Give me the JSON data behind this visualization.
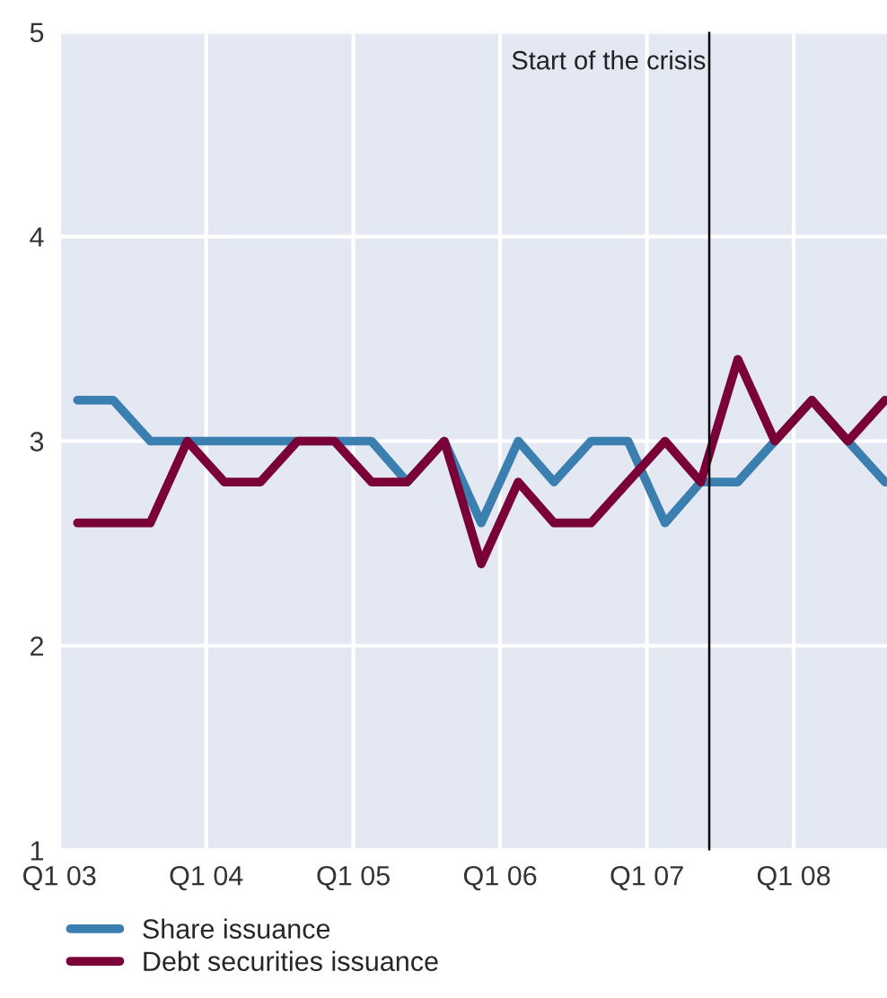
{
  "chart_data": {
    "type": "line",
    "x": [
      "2003-02-15",
      "2003-05-15",
      "2003-08-15",
      "2003-11-15",
      "2004-02-15",
      "2004-05-15",
      "2004-08-15",
      "2004-11-15",
      "2005-02-15",
      "2005-05-15",
      "2005-08-15",
      "2005-11-15",
      "2006-02-15",
      "2006-05-15",
      "2006-08-15",
      "2006-11-15",
      "2007-02-15",
      "2007-05-15",
      "2007-08-15",
      "2007-11-15",
      "2008-02-15",
      "2008-05-15",
      "2008-08-15"
    ],
    "series": [
      {
        "name": "Share issuance",
        "color": "#3a7fb0",
        "values": [
          3.2,
          3.2,
          3.0,
          3.0,
          3.0,
          3.0,
          3.0,
          3.0,
          3.0,
          2.8,
          3.0,
          2.6,
          3.0,
          2.8,
          3.0,
          3.0,
          2.6,
          2.8,
          2.8,
          3.0,
          3.2,
          3.0,
          2.8
        ]
      },
      {
        "name": "Debt securities issuance",
        "color": "#7a0038",
        "values": [
          2.6,
          2.6,
          2.6,
          3.0,
          2.8,
          2.8,
          3.0,
          3.0,
          2.8,
          2.8,
          3.0,
          2.4,
          2.8,
          2.6,
          2.6,
          2.8,
          3.0,
          2.8,
          3.4,
          3.0,
          3.2,
          3.0,
          3.2
        ]
      }
    ],
    "xlim": [
      "2003-01-01",
      "2008-08-20"
    ],
    "xticks": [
      {
        "value": "2003-01-01",
        "label": "Q1 03"
      },
      {
        "value": "2004-01-01",
        "label": "Q1 04"
      },
      {
        "value": "2005-01-01",
        "label": "Q1 05"
      },
      {
        "value": "2006-01-01",
        "label": "Q1 06"
      },
      {
        "value": "2007-01-01",
        "label": "Q1 07"
      },
      {
        "value": "2008-01-01",
        "label": "Q1 08"
      }
    ],
    "ylim": [
      1,
      5
    ],
    "yticks": [
      1,
      2,
      3,
      4,
      5
    ],
    "ref_lines": [
      {
        "axis": "x",
        "value": "2007-06-05",
        "label": "Start of the crisis",
        "color": "#000000"
      }
    ],
    "grid": true,
    "legend": "bottom",
    "line_style": "solid",
    "marker": "none"
  }
}
